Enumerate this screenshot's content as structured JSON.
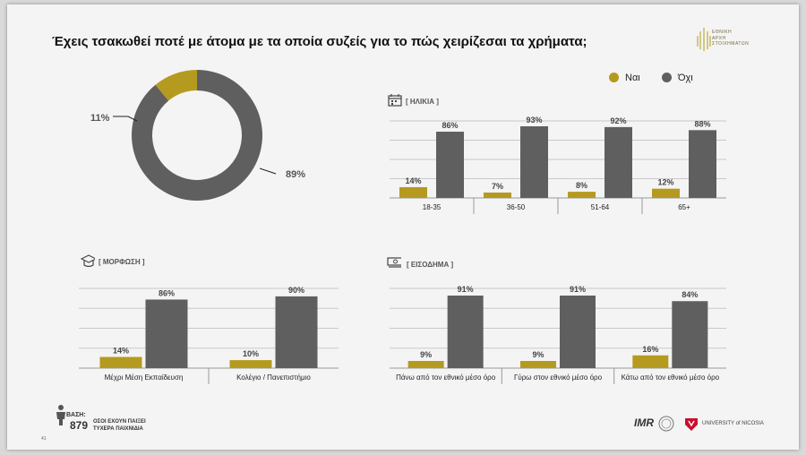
{
  "title": "Έχεις τσακωθεί ποτέ με άτομα με τα οποία συζείς για το πώς χειρίζεσαι τα χρήματα;",
  "brand": {
    "line1": "ΕΘΝΙΚΗ",
    "line2": "ΑΡΧΗ",
    "line3": "ΣΤΟΙΧΗΜΑΤΩΝ"
  },
  "legend": [
    {
      "label": "Ναι",
      "color": "#b59a20"
    },
    {
      "label": "Όχι",
      "color": "#5f5f5f"
    }
  ],
  "colors": {
    "yes": "#b59a20",
    "no": "#5f5f5f"
  },
  "icons": {
    "age": "calendar-icon",
    "education": "graduation-cap-icon",
    "income": "money-stack-icon",
    "base": "person-icon"
  },
  "chart_data": [
    {
      "type": "pie",
      "name": "overall",
      "categories": [
        "Ναι",
        "Όχι"
      ],
      "values": [
        11,
        89
      ],
      "labels": [
        "11%",
        "89%"
      ]
    },
    {
      "type": "bar",
      "name": "age",
      "title": "[ ΗΛΙΚΙΑ ]",
      "categories": [
        "18-35",
        "36-50",
        "51-64",
        "65+"
      ],
      "series": [
        {
          "name": "Ναι",
          "values": [
            14,
            7,
            8,
            12
          ]
        },
        {
          "name": "Όχι",
          "values": [
            86,
            93,
            92,
            88
          ]
        }
      ],
      "ylim": [
        0,
        100
      ]
    },
    {
      "type": "bar",
      "name": "education",
      "title": "[ ΜΟΡΦΩΣΗ ]",
      "categories": [
        "Μέχρι Μέση Εκπαίδευση",
        "Κολέγιο / Πανεπιστήμιο"
      ],
      "series": [
        {
          "name": "Ναι",
          "values": [
            14,
            10
          ]
        },
        {
          "name": "Όχι",
          "values": [
            86,
            90
          ]
        }
      ],
      "ylim": [
        0,
        100
      ]
    },
    {
      "type": "bar",
      "name": "income",
      "title": "[ ΕΙΣΟΔΗΜΑ ]",
      "categories": [
        "Πάνω από τον εθνικό μέσο όρο",
        "Γύρω στον εθνικό μέσο όρο",
        "Κάτω από τον εθνικό μέσο όρο"
      ],
      "series": [
        {
          "name": "Ναι",
          "values": [
            9,
            9,
            16
          ]
        },
        {
          "name": "Όχι",
          "values": [
            91,
            91,
            84
          ]
        }
      ],
      "ylim": [
        0,
        100
      ]
    }
  ],
  "footer": {
    "base_label": "ΒΑΣΗ:",
    "base_value": "879",
    "base_desc_1": "ΟΣΟΙ ΕΧΟΥΝ ΠΑΙΞΕΙ",
    "base_desc_2": "ΤΥΧΕΡΑ ΠΑΙΧΝΙΔΙΑ",
    "page_number": "41",
    "university": "UNIVERSITY of NICOSIA",
    "imr": "IMR"
  }
}
